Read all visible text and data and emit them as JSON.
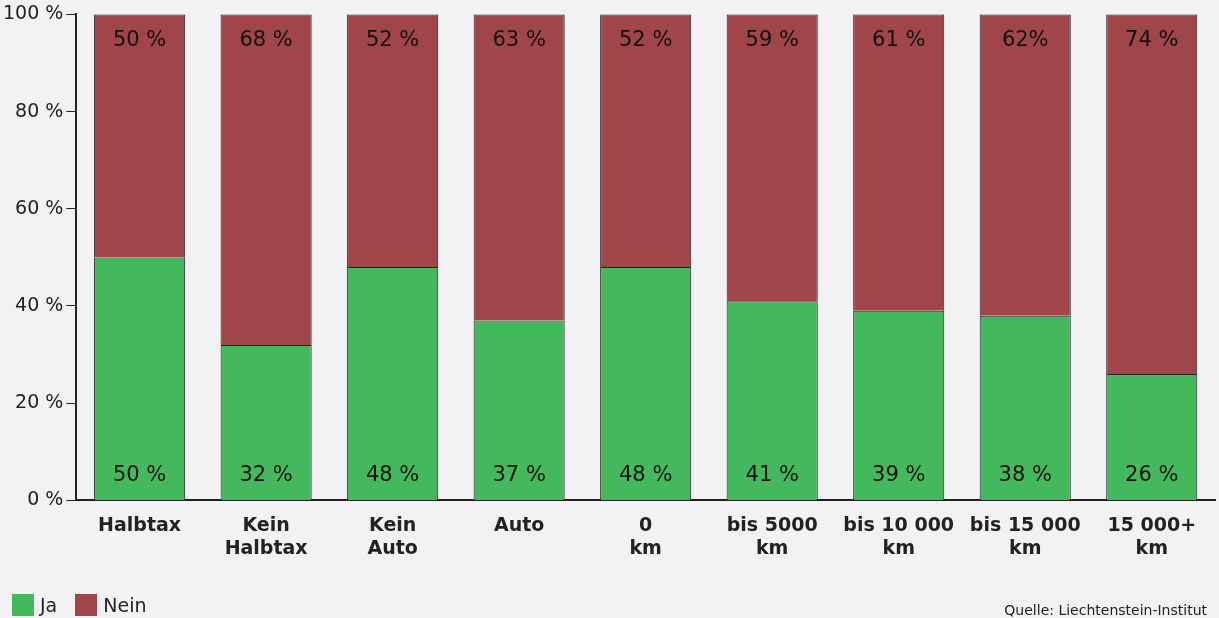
{
  "chart_data": {
    "type": "bar",
    "stacked": true,
    "categories": [
      "Halbtax",
      "Kein\nHalbtax",
      "Kein\nAuto",
      "Auto",
      "0\nkm",
      "bis 5000\nkm",
      "bis 10 000\nkm",
      "bis 15 000\nkm",
      "15 000+\nkm"
    ],
    "series": [
      {
        "name": "Ja",
        "color": "#43b85c",
        "values": [
          50,
          32,
          48,
          37,
          48,
          41,
          39,
          38,
          26
        ],
        "value_labels": [
          "50 %",
          "32 %",
          "48 %",
          "37 %",
          "48 %",
          "41 %",
          "39 %",
          "38 %",
          "26 %"
        ]
      },
      {
        "name": "Nein",
        "color": "#a0464b",
        "values": [
          50,
          68,
          52,
          63,
          52,
          59,
          61,
          62,
          74
        ],
        "value_labels": [
          "50 %",
          "68 %",
          "52 %",
          "63 %",
          "52 %",
          "59 %",
          "61 %",
          "62%",
          "74 %"
        ]
      }
    ],
    "ylim": [
      0,
      100
    ],
    "yticks": [
      {
        "value": 0,
        "label": "0 %"
      },
      {
        "value": 20,
        "label": "20 %"
      },
      {
        "value": 40,
        "label": "40 %"
      },
      {
        "value": 60,
        "label": "60 %"
      },
      {
        "value": 80,
        "label": "80 %"
      },
      {
        "value": 100,
        "label": "100 %"
      }
    ],
    "grid": false,
    "legend": "bottom left",
    "annotations": [
      "Quelle: Liechtenstein-Institut"
    ]
  }
}
